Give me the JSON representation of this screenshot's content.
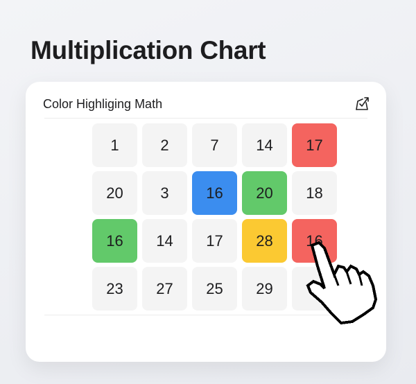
{
  "page_title": "Multiplication Chart",
  "card": {
    "heading": "Color Highliging Math",
    "icon": "edit-chart-icon"
  },
  "colors": {
    "red": "#f4645f",
    "blue": "#3b8def",
    "green": "#62c96a",
    "yellow": "#fbc932",
    "default": "#f4f4f4"
  },
  "grid": [
    [
      {
        "v": "1"
      },
      {
        "v": "2"
      },
      {
        "v": "7"
      },
      {
        "v": "14"
      },
      {
        "v": "17",
        "color": "red"
      }
    ],
    [
      {
        "v": "20"
      },
      {
        "v": "3"
      },
      {
        "v": "16",
        "color": "blue"
      },
      {
        "v": "20",
        "color": "green"
      },
      {
        "v": "18"
      }
    ],
    [
      {
        "v": "16",
        "color": "green"
      },
      {
        "v": "14"
      },
      {
        "v": "17"
      },
      {
        "v": "28",
        "color": "yellow"
      },
      {
        "v": "16",
        "color": "red"
      }
    ],
    [
      {
        "v": "23"
      },
      {
        "v": "27"
      },
      {
        "v": "25"
      },
      {
        "v": "29"
      },
      {
        "v": "2"
      }
    ]
  ],
  "cursor": "hand-pointer-icon"
}
